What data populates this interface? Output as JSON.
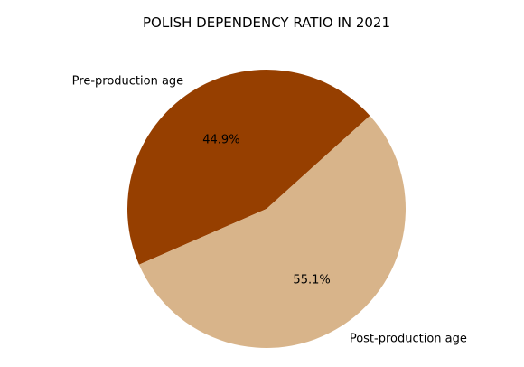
{
  "chart_data": {
    "type": "pie",
    "title": "POLISH DEPENDENCY RATIO IN 2021",
    "slices": [
      {
        "label": "Pre-production age",
        "value": 44.9,
        "pct_text": "44.9%",
        "color": "#963f00"
      },
      {
        "label": "Post-production age",
        "value": 55.1,
        "pct_text": "55.1%",
        "color": "#d8b48a"
      }
    ],
    "start_angle_deg": 42,
    "direction": "counterclockwise"
  }
}
